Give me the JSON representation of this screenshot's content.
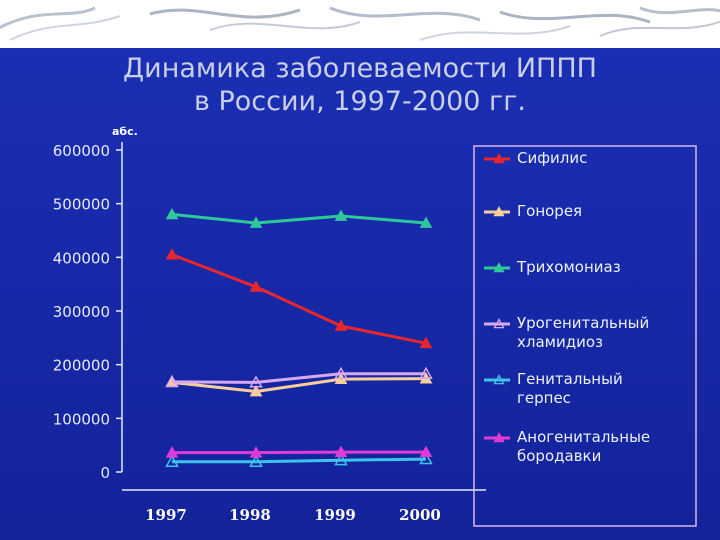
{
  "slide": {
    "title_lines": [
      "Динамика заболеваемости ИППП",
      "в России, 1997-2000 гг."
    ]
  },
  "chart_data": {
    "type": "line",
    "x": [
      "1997",
      "1998",
      "1999",
      "2000"
    ],
    "ylabel": "абс.",
    "ylim": [
      0,
      600000
    ],
    "yticks": [
      0,
      100000,
      200000,
      300000,
      400000,
      500000,
      600000
    ],
    "ytick_labels": [
      "0",
      "100000",
      "200000",
      "300000",
      "400000",
      "500000",
      "600000"
    ],
    "grid": false,
    "legend_position": "right",
    "series": [
      {
        "name": "Сифилис",
        "label_lines": [
          "Сифилис"
        ],
        "values": [
          405000,
          345000,
          272000,
          240000
        ],
        "color": "#e8262c",
        "marker": "filled-triangle"
      },
      {
        "name": "Гонорея",
        "label_lines": [
          "Гонорея"
        ],
        "values": [
          167000,
          150000,
          173000,
          174000
        ],
        "color": "#f6cf9a",
        "marker": "filled-triangle"
      },
      {
        "name": "Трихомониаз",
        "label_lines": [
          "Трихомониаз"
        ],
        "values": [
          480000,
          464000,
          477000,
          464000
        ],
        "color": "#2ec89a",
        "marker": "filled-triangle"
      },
      {
        "name": "Урогенитальный хламидиоз",
        "label_lines": [
          "Урогенитальный",
          "хламидиоз"
        ],
        "values": [
          168000,
          167000,
          183000,
          183000
        ],
        "color": "#d6a8ee",
        "marker": "open-triangle"
      },
      {
        "name": "Генитальный герпес",
        "label_lines": [
          "Генитальный",
          "герпес"
        ],
        "values": [
          19000,
          19000,
          22000,
          24000
        ],
        "color": "#3ec3ec",
        "marker": "open-triangle"
      },
      {
        "name": "Аногенитальные бородавки",
        "label_lines": [
          "Аногенитальные",
          "бородавки"
        ],
        "values": [
          36000,
          36000,
          37000,
          37000
        ],
        "color": "#e23ad8",
        "marker": "filled-triangle"
      }
    ]
  }
}
